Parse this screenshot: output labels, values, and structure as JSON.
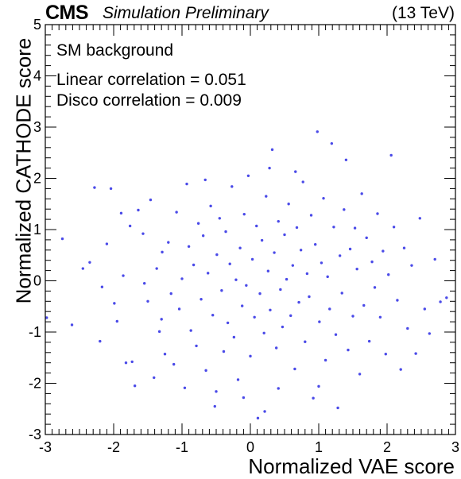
{
  "header": {
    "experiment": "CMS",
    "status": "Simulation Preliminary",
    "energy": "(13 TeV)"
  },
  "annotations": {
    "sample": "SM background",
    "linear": "Linear correlation = 0.051",
    "disco": "Disco correlation = 0.009"
  },
  "chart_data": {
    "type": "scatter",
    "xlabel": "Normalized VAE score",
    "ylabel": "Normalized CATHODE score",
    "xlim": [
      -3,
      3
    ],
    "ylim": [
      -3,
      5
    ],
    "xticks": [
      -3,
      -2,
      -1,
      0,
      1,
      2,
      3
    ],
    "yticks": [
      -3,
      -2,
      -1,
      0,
      1,
      2,
      3,
      4,
      5
    ],
    "marker_color": "#4a4ae8",
    "grid": false,
    "series": [
      {
        "points": [
          [
            -2.75,
            0.82
          ],
          [
            -2.61,
            -0.86
          ],
          [
            -2.45,
            0.24
          ],
          [
            -2.35,
            0.36
          ],
          [
            -2.28,
            1.82
          ],
          [
            -2.2,
            -1.18
          ],
          [
            -2.1,
            0.72
          ],
          [
            -2.04,
            1.8
          ],
          [
            -2.17,
            -0.12
          ],
          [
            -1.99,
            -0.44
          ],
          [
            -1.95,
            -0.79
          ],
          [
            -1.89,
            1.32
          ],
          [
            -1.86,
            0.1
          ],
          [
            -1.82,
            -1.6
          ],
          [
            -1.76,
            1.07
          ],
          [
            -1.73,
            -1.58
          ],
          [
            -1.69,
            -2.05
          ],
          [
            -1.64,
            1.38
          ],
          [
            -1.57,
            0.92
          ],
          [
            -1.5,
            -0.4
          ],
          [
            -1.46,
            1.58
          ],
          [
            -1.41,
            -1.89
          ],
          [
            -1.37,
            0.24
          ],
          [
            -1.33,
            -0.99
          ],
          [
            -1.29,
            0.56
          ],
          [
            -1.25,
            -1.43
          ],
          [
            -1.2,
            0.75
          ],
          [
            -1.16,
            -0.25
          ],
          [
            -1.12,
            -1.63
          ],
          [
            -1.08,
            1.34
          ],
          [
            -1.04,
            -0.55
          ],
          [
            -1.0,
            0.04
          ],
          [
            -0.96,
            -2.09
          ],
          [
            -0.93,
            1.89
          ],
          [
            -0.9,
            0.67
          ],
          [
            -0.87,
            -0.97
          ],
          [
            -0.83,
            0.31
          ],
          [
            -0.79,
            -1.27
          ],
          [
            -0.76,
            1.12
          ],
          [
            -0.72,
            -0.36
          ],
          [
            -0.69,
            0.88
          ],
          [
            -0.65,
            -1.75
          ],
          [
            -0.62,
            0.15
          ],
          [
            -0.58,
            1.46
          ],
          [
            -0.55,
            -0.67
          ],
          [
            -0.52,
            -2.45
          ],
          [
            -0.49,
            0.51
          ],
          [
            -0.45,
            1.22
          ],
          [
            -0.42,
            -0.19
          ],
          [
            -0.39,
            -1.38
          ],
          [
            -0.36,
            0.96
          ],
          [
            -0.33,
            -0.82
          ],
          [
            -0.3,
            0.33
          ],
          [
            -0.27,
            1.84
          ],
          [
            -0.24,
            -1.1
          ],
          [
            -0.21,
            0.02
          ],
          [
            -0.18,
            -1.93
          ],
          [
            -0.15,
            0.64
          ],
          [
            -0.12,
            -0.49
          ],
          [
            -0.09,
            1.3
          ],
          [
            -0.06,
            -0.09
          ],
          [
            -0.03,
            2.05
          ],
          [
            0.0,
            -1.47
          ],
          [
            0.03,
            0.42
          ],
          [
            0.06,
            -0.71
          ],
          [
            0.09,
            1.07
          ],
          [
            0.11,
            -2.68
          ],
          [
            0.14,
            -0.25
          ],
          [
            0.17,
            0.79
          ],
          [
            0.2,
            -1.02
          ],
          [
            0.23,
            1.65
          ],
          [
            0.26,
            0.19
          ],
          [
            0.29,
            -0.57
          ],
          [
            0.32,
            2.56
          ],
          [
            0.35,
            0.55
          ],
          [
            0.38,
            -1.31
          ],
          [
            0.41,
            1.16
          ],
          [
            0.44,
            -0.17
          ],
          [
            0.47,
            -0.9
          ],
          [
            0.5,
            0.9
          ],
          [
            0.53,
            0.03
          ],
          [
            0.56,
            1.5
          ],
          [
            0.59,
            -0.68
          ],
          [
            0.62,
            0.3
          ],
          [
            0.65,
            -1.72
          ],
          [
            0.68,
            1.04
          ],
          [
            0.71,
            -0.42
          ],
          [
            0.74,
            0.6
          ],
          [
            0.77,
            1.93
          ],
          [
            0.8,
            -1.19
          ],
          [
            0.83,
            0.14
          ],
          [
            0.86,
            -0.31
          ],
          [
            0.89,
            1.28
          ],
          [
            0.92,
            -2.29
          ],
          [
            0.95,
            0.71
          ],
          [
            0.98,
            2.91
          ],
          [
            1.01,
            -0.8
          ],
          [
            1.04,
            0.35
          ],
          [
            1.07,
            1.61
          ],
          [
            1.1,
            -1.55
          ],
          [
            1.13,
            0.08
          ],
          [
            1.16,
            -0.55
          ],
          [
            1.19,
            2.68
          ],
          [
            1.22,
            1.05
          ],
          [
            1.25,
            -1.05
          ],
          [
            1.28,
            -2.48
          ],
          [
            1.31,
            0.49
          ],
          [
            1.34,
            -0.24
          ],
          [
            1.37,
            1.39
          ],
          [
            1.4,
            2.36
          ],
          [
            1.43,
            -1.35
          ],
          [
            1.46,
            0.62
          ],
          [
            1.5,
            -0.69
          ],
          [
            1.53,
            1.03
          ],
          [
            1.56,
            0.23
          ],
          [
            1.6,
            -1.82
          ],
          [
            1.63,
            1.7
          ],
          [
            1.66,
            -0.48
          ],
          [
            1.7,
            0.84
          ],
          [
            1.74,
            -1.18
          ],
          [
            1.78,
            0.37
          ],
          [
            1.82,
            -0.13
          ],
          [
            1.86,
            1.31
          ],
          [
            1.9,
            -0.71
          ],
          [
            1.94,
            0.58
          ],
          [
            1.98,
            -1.43
          ],
          [
            2.02,
            0.12
          ],
          [
            2.06,
            2.45
          ],
          [
            2.1,
            1.05
          ],
          [
            2.15,
            -0.38
          ],
          [
            2.2,
            -1.73
          ],
          [
            2.25,
            0.64
          ],
          [
            2.3,
            -0.93
          ],
          [
            2.36,
            0.3
          ],
          [
            2.42,
            -1.42
          ],
          [
            2.48,
            1.22
          ],
          [
            2.55,
            -0.55
          ],
          [
            2.62,
            -1.03
          ],
          [
            2.7,
            0.42
          ],
          [
            2.78,
            -0.41
          ],
          [
            2.87,
            -0.33
          ],
          [
            -2.98,
            -0.72
          ],
          [
            -1.55,
            -0.05
          ],
          [
            -1.3,
            -0.75
          ],
          [
            0.41,
            -2.1
          ],
          [
            -0.5,
            -2.16
          ],
          [
            0.21,
            -2.55
          ],
          [
            -0.1,
            -2.28
          ],
          [
            1.0,
            -2.06
          ],
          [
            0.66,
            2.13
          ],
          [
            -0.66,
            1.97
          ],
          [
            0.28,
            2.2
          ]
        ]
      }
    ]
  }
}
